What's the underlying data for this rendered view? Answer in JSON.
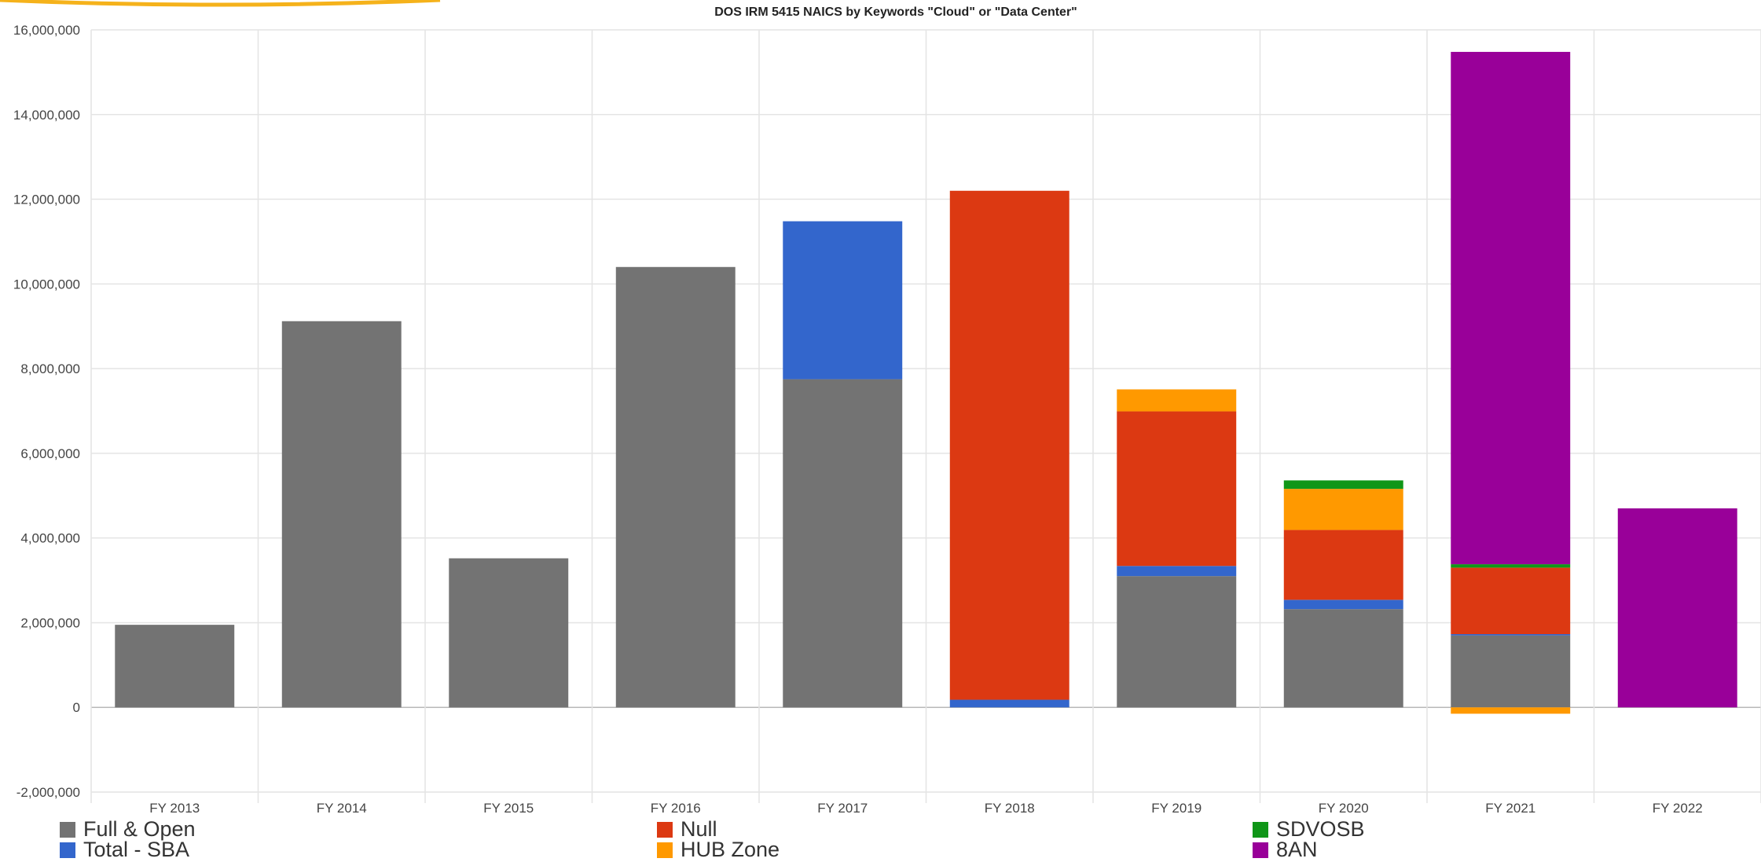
{
  "chart_data": {
    "type": "bar",
    "stacked": true,
    "title": "DOS IRM 5415 NAICS by Keywords \"Cloud\" or \"Data Center\"",
    "categories": [
      "FY 2013",
      "FY 2014",
      "FY 2015",
      "FY 2016",
      "FY 2017",
      "FY 2018",
      "FY 2019",
      "FY 2020",
      "FY 2021",
      "FY 2022"
    ],
    "ylim": [
      -2000000,
      16000000
    ],
    "yticks": [
      -2000000,
      0,
      2000000,
      4000000,
      6000000,
      8000000,
      10000000,
      12000000,
      14000000,
      16000000
    ],
    "ytick_labels": [
      "-2,000,000",
      "0",
      "2,000,000",
      "4,000,000",
      "6,000,000",
      "8,000,000",
      "10,000,000",
      "12,000,000",
      "14,000,000",
      "16,000,000"
    ],
    "grid": true,
    "legend_position": "bottom",
    "series": [
      {
        "name": "Full & Open",
        "color": "#737373",
        "values": [
          1950000,
          9120000,
          3520000,
          10400000,
          7750000,
          0,
          3100000,
          2320000,
          1700000,
          0
        ]
      },
      {
        "name": "Total - SBA",
        "color": "#3366cc",
        "values": [
          0,
          0,
          0,
          0,
          3730000,
          180000,
          240000,
          220000,
          30000,
          0
        ]
      },
      {
        "name": "Null",
        "color": "#dc3912",
        "values": [
          0,
          0,
          0,
          0,
          0,
          12020000,
          3650000,
          1650000,
          1570000,
          0
        ]
      },
      {
        "name": "HUB Zone",
        "color": "#ff9900",
        "values": [
          0,
          0,
          0,
          0,
          0,
          0,
          520000,
          970000,
          -150000,
          0
        ]
      },
      {
        "name": "SDVOSB",
        "color": "#109618",
        "values": [
          0,
          0,
          0,
          0,
          0,
          0,
          0,
          200000,
          80000,
          0
        ]
      },
      {
        "name": "8AN",
        "color": "#990099",
        "values": [
          0,
          0,
          0,
          0,
          0,
          0,
          0,
          0,
          12100000,
          4700000
        ]
      }
    ]
  },
  "legend": [
    {
      "label": "Full & Open",
      "color": "#737373"
    },
    {
      "label": "Total - SBA",
      "color": "#3366cc"
    },
    {
      "label": "Null",
      "color": "#dc3912"
    },
    {
      "label": "HUB Zone",
      "color": "#ff9900"
    },
    {
      "label": "SDVOSB",
      "color": "#109618"
    },
    {
      "label": "8AN",
      "color": "#990099"
    }
  ],
  "decor": {
    "accent_arc_color": "#f5b21b"
  }
}
